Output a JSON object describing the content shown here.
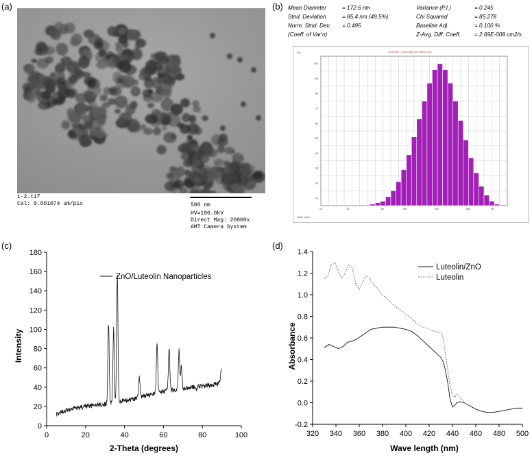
{
  "panel_a": {
    "label": "(a)",
    "caption_left": [
      "1-2.tif",
      "Cal: 0.001074 um/pix"
    ],
    "scale_bar": "500 nm",
    "caption_right": [
      "HV=100.0kV",
      "Direct Mag: 20000x",
      "AMT Camera System"
    ]
  },
  "panel_b": {
    "label": "(b)",
    "stats_left": [
      {
        "label": "Mean Diameter",
        "value": "= 172.6 nm"
      },
      {
        "label": "Stnd. Deviation",
        "value": "= 85.4  nm (49.5%)"
      },
      {
        "label": "Norm. Stnd. Dev.",
        "value": "= 0.495"
      },
      {
        "label": "(Coeff. of Var'n)",
        "value": ""
      }
    ],
    "stats_right": [
      {
        "label": "Variance (P.I.)",
        "value": "= 0.245"
      },
      {
        "label": "Chi Squared",
        "value": "= 85.278"
      },
      {
        "label": "Baseline Adj.",
        "value": "= 0.100 %"
      },
      {
        "label": "Z-Avg. Diff. Coeff.",
        "value": "= 2.69E-008 cm2/s"
      }
    ],
    "histogram_title": "INTENSITY GAUSSIAN DISTRIBUTION",
    "y_corner": "Vol",
    "x_corner": "Diam (nm)",
    "bar_color": "#a21fb8"
  },
  "panel_c": {
    "label": "(c)"
  },
  "panel_d": {
    "label": "(d)"
  },
  "chart_data": [
    {
      "type": "bar",
      "panel": "b",
      "title": "INTENSITY GAUSSIAN DISTRIBUTION",
      "x": [
        10,
        20,
        30,
        40,
        50,
        60,
        70,
        80,
        90,
        100,
        110,
        120,
        130,
        140,
        150,
        160,
        170,
        180,
        190,
        200,
        210,
        220,
        230,
        240,
        250,
        260,
        270,
        280,
        290,
        300,
        310,
        320,
        330,
        340,
        350
      ],
      "values": [
        0,
        0,
        0,
        0,
        0,
        0,
        0,
        0,
        0.5,
        1,
        2,
        3,
        6,
        10,
        16,
        24,
        34,
        46,
        58,
        70,
        82,
        91,
        95,
        91,
        82,
        70,
        57,
        44,
        32,
        22,
        13,
        7,
        3,
        1,
        0.5
      ],
      "x_ticks": [
        "10",
        "20",
        "50",
        "100",
        "200",
        "500",
        "1K"
      ],
      "y_ticks": [
        "100",
        "90",
        "80",
        "70",
        "60",
        "50",
        "40",
        "30",
        "20",
        "10"
      ]
    },
    {
      "type": "line",
      "panel": "c",
      "xlabel": "2-Theta (degrees)",
      "ylabel": "Intensity",
      "xlim": [
        0,
        100
      ],
      "ylim": [
        0,
        180
      ],
      "x_ticks": [
        0,
        20,
        40,
        60,
        80,
        100
      ],
      "y_ticks": [
        0,
        20,
        40,
        60,
        80,
        100,
        120,
        140,
        160,
        180
      ],
      "series": [
        {
          "name": "ZnO/Luteolin Nanoparticles",
          "baseline": [
            [
              5,
              12
            ],
            [
              10,
              16
            ],
            [
              15,
              18
            ],
            [
              20,
              20
            ],
            [
              25,
              21
            ],
            [
              30,
              22
            ],
            [
              32,
              23
            ],
            [
              40,
              26
            ],
            [
              45,
              28
            ],
            [
              50,
              31
            ],
            [
              55,
              33
            ],
            [
              60,
              36
            ],
            [
              65,
              37
            ],
            [
              70,
              38
            ],
            [
              75,
              40
            ],
            [
              80,
              41
            ],
            [
              85,
              42
            ],
            [
              88,
              44
            ],
            [
              89,
              48
            ],
            [
              90,
              60
            ]
          ],
          "peaks": [
            [
              31.8,
              105
            ],
            [
              34.4,
              100
            ],
            [
              36.3,
              157
            ],
            [
              47.6,
              50
            ],
            [
              56.7,
              86
            ],
            [
              62.9,
              81
            ],
            [
              68.0,
              78
            ],
            [
              69.2,
              62
            ],
            [
              76.9,
              38
            ]
          ]
        }
      ]
    },
    {
      "type": "line",
      "panel": "d",
      "xlabel": "Wave length (nm)",
      "ylabel": "Absorbance",
      "xlim": [
        320,
        500
      ],
      "ylim": [
        -0.2,
        1.4
      ],
      "x_ticks": [
        320,
        340,
        360,
        380,
        400,
        420,
        440,
        460,
        480,
        500
      ],
      "y_ticks": [
        -0.2,
        0.0,
        0.2,
        0.4,
        0.6,
        0.8,
        1.0,
        1.2,
        1.4
      ],
      "series": [
        {
          "name": "Luteolin/ZnO",
          "style": "solid",
          "x": [
            330,
            334,
            338,
            342,
            346,
            350,
            354,
            358,
            362,
            366,
            370,
            375,
            380,
            385,
            390,
            395,
            400,
            405,
            410,
            415,
            420,
            425,
            428,
            430,
            432,
            434,
            436,
            438,
            440,
            442,
            444,
            446,
            450,
            455,
            460,
            465,
            470,
            475,
            480,
            485,
            490,
            495,
            500
          ],
          "y": [
            0.51,
            0.54,
            0.52,
            0.5,
            0.52,
            0.56,
            0.57,
            0.59,
            0.62,
            0.65,
            0.68,
            0.69,
            0.7,
            0.7,
            0.7,
            0.69,
            0.68,
            0.66,
            0.62,
            0.57,
            0.52,
            0.47,
            0.44,
            0.42,
            0.38,
            0.3,
            0.18,
            0.03,
            -0.04,
            -0.02,
            0.0,
            0.01,
            0.0,
            -0.03,
            -0.06,
            -0.08,
            -0.09,
            -0.09,
            -0.08,
            -0.07,
            -0.06,
            -0.05,
            -0.05
          ]
        },
        {
          "name": "Luteolin",
          "style": "dotted",
          "x": [
            330,
            333,
            336,
            339,
            342,
            345,
            348,
            351,
            354,
            357,
            360,
            363,
            366,
            369,
            372,
            376,
            380,
            385,
            390,
            395,
            400,
            405,
            410,
            415,
            420,
            425,
            430,
            432,
            434,
            436,
            438,
            440,
            442,
            444,
            446,
            448,
            450
          ],
          "y": [
            1.15,
            1.17,
            1.28,
            1.3,
            1.22,
            1.15,
            1.2,
            1.28,
            1.25,
            1.1,
            1.05,
            1.12,
            1.18,
            1.15,
            1.1,
            1.05,
            1.0,
            0.95,
            0.9,
            0.86,
            0.82,
            0.78,
            0.73,
            0.7,
            0.68,
            0.66,
            0.65,
            0.6,
            0.45,
            0.3,
            0.15,
            0.07,
            0.05,
            0.08,
            0.06,
            0.03,
            0.01
          ]
        }
      ]
    }
  ]
}
